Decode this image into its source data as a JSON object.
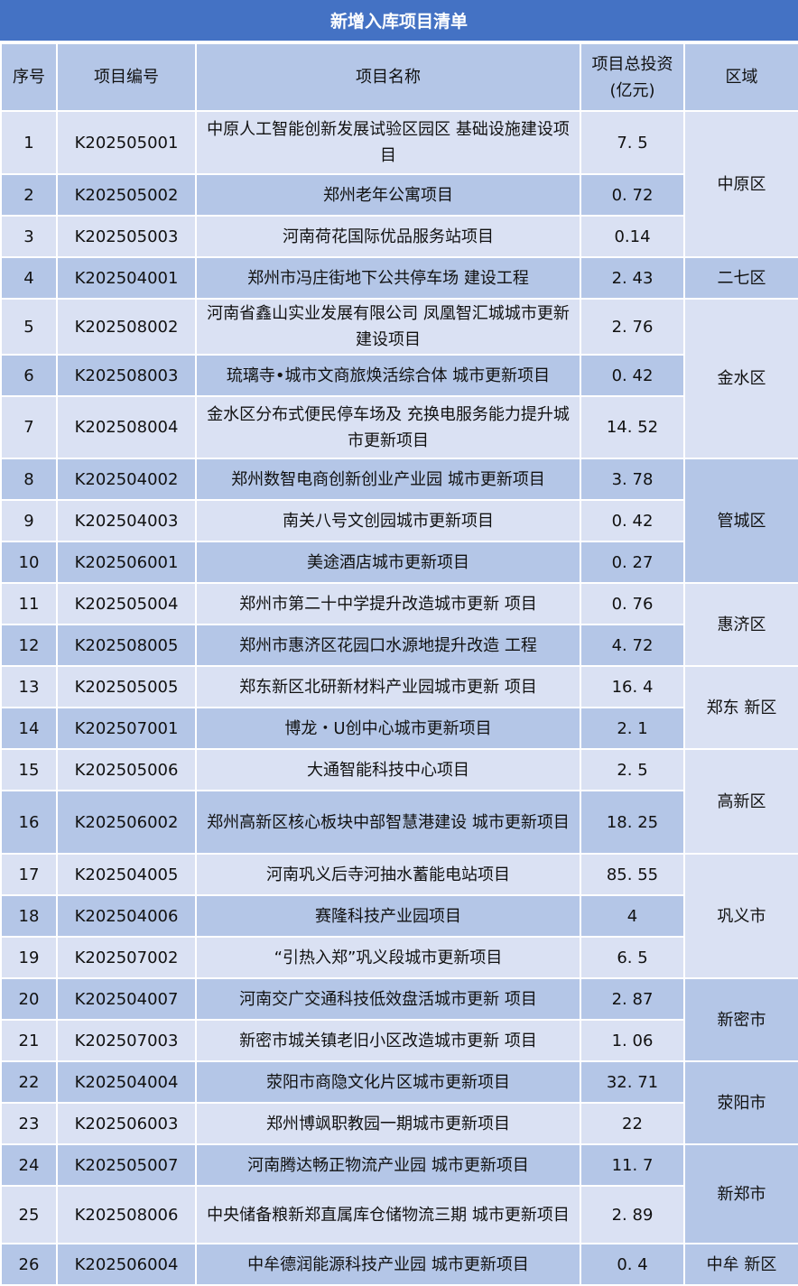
{
  "title": "新增入库项目清单",
  "headers": [
    "序号",
    "项目编号",
    "项目名称",
    "项目总投资\n(亿元)",
    "区域"
  ],
  "colors": {
    "title_bg": "#4472c4",
    "row_light": "#dae1f3",
    "row_dark": "#b4c6e7"
  },
  "rows": [
    {
      "no": "1",
      "code": "K202505001",
      "name": "中原人工智能创新发展试验区园区 基础设施建设项目",
      "invest": "7. 5"
    },
    {
      "no": "2",
      "code": "K202505002",
      "name": "郑州老年公寓项目",
      "invest": "0. 72"
    },
    {
      "no": "3",
      "code": "K202505003",
      "name": "河南荷花国际优品服务站项目",
      "invest": "0.14"
    },
    {
      "no": "4",
      "code": "K202504001",
      "name": "郑州市冯庄街地下公共停车场 建设工程",
      "invest": "2. 43"
    },
    {
      "no": "5",
      "code": "K202508002",
      "name": "河南省鑫山实业发展有限公司 凤凰智汇城城市更新建设项目",
      "invest": "2. 76"
    },
    {
      "no": "6",
      "code": "K202508003",
      "name": "琉璃寺•城市文商旅焕活综合体 城市更新项目",
      "invest": "0. 42"
    },
    {
      "no": "7",
      "code": "K202508004",
      "name": "金水区分布式便民停车场及 充换电服务能力提升城市更新项目",
      "invest": "14. 52"
    },
    {
      "no": "8",
      "code": "K202504002",
      "name": "郑州数智电商创新创业产业园 城市更新项目",
      "invest": "3. 78"
    },
    {
      "no": "9",
      "code": "K202504003",
      "name": "南关八号文创园城市更新项目",
      "invest": "0. 42"
    },
    {
      "no": "10",
      "code": "K202506001",
      "name": "美途酒店城市更新项目",
      "invest": "0. 27"
    },
    {
      "no": "11",
      "code": "K202505004",
      "name": "郑州市第二十中学提升改造城市更新 项目",
      "invest": "0. 76"
    },
    {
      "no": "12",
      "code": "K202508005",
      "name": "郑州市惠济区花园口水源地提升改造 工程",
      "invest": "4. 72"
    },
    {
      "no": "13",
      "code": "K202505005",
      "name": "郑东新区北研新材料产业园城市更新 项目",
      "invest": "16. 4"
    },
    {
      "no": "14",
      "code": "K202507001",
      "name": "博龙・U创中心城市更新项目",
      "invest": "2. 1"
    },
    {
      "no": "15",
      "code": "K202505006",
      "name": "大通智能科技中心项目",
      "invest": "2. 5"
    },
    {
      "no": "16",
      "code": "K202506002",
      "name": "郑州高新区核心板块中部智慧港建设 城市更新项目",
      "invest": "18. 25"
    },
    {
      "no": "17",
      "code": "K202504005",
      "name": "河南巩义后寺河抽水蓄能电站项目",
      "invest": "85. 55"
    },
    {
      "no": "18",
      "code": "K202504006",
      "name": "赛隆科技产业园项目",
      "invest": "4"
    },
    {
      "no": "19",
      "code": "K202507002",
      "name": "“引热入郑”巩义段城市更新项目",
      "invest": "6. 5"
    },
    {
      "no": "20",
      "code": "K202504007",
      "name": "河南交广交通科技低效盘活城市更新 项目",
      "invest": "2. 87"
    },
    {
      "no": "21",
      "code": "K202507003",
      "name": "新密市城关镇老旧小区改造城市更新 项目",
      "invest": "1. 06"
    },
    {
      "no": "22",
      "code": "K202504004",
      "name": "荥阳市商隐文化片区城市更新项目",
      "invest": "32. 71"
    },
    {
      "no": "23",
      "code": "K202506003",
      "name": "郑州博飒职教园一期城市更新项目",
      "invest": "22"
    },
    {
      "no": "24",
      "code": "K202505007",
      "name": "河南腾达畅正物流产业园 城市更新项目",
      "invest": "11. 7"
    },
    {
      "no": "25",
      "code": "K202508006",
      "name": "中央储备粮新郑直属库仓储物流三期 城市更新项目",
      "invest": "2. 89"
    },
    {
      "no": "26",
      "code": "K202506004",
      "name": "中牟德润能源科技产业园 城市更新项目",
      "invest": "0. 4"
    }
  ],
  "regions": [
    {
      "name": "中原区",
      "span": 3,
      "shade": "light"
    },
    {
      "name": "二七区",
      "span": 1,
      "shade": "dark"
    },
    {
      "name": "金水区",
      "span": 3,
      "shade": "light"
    },
    {
      "name": "管城区",
      "span": 3,
      "shade": "dark"
    },
    {
      "name": "惠济区",
      "span": 2,
      "shade": "light"
    },
    {
      "name": "郑东 新区",
      "span": 2,
      "shade": "light"
    },
    {
      "name": "高新区",
      "span": 2,
      "shade": "light"
    },
    {
      "name": "巩义市",
      "span": 3,
      "shade": "light"
    },
    {
      "name": "新密市",
      "span": 2,
      "shade": "dark"
    },
    {
      "name": "荥阳市",
      "span": 2,
      "shade": "dark"
    },
    {
      "name": "新郑市",
      "span": 2,
      "shade": "dark"
    },
    {
      "name": "中牟 新区",
      "span": 1,
      "shade": "dark"
    }
  ]
}
